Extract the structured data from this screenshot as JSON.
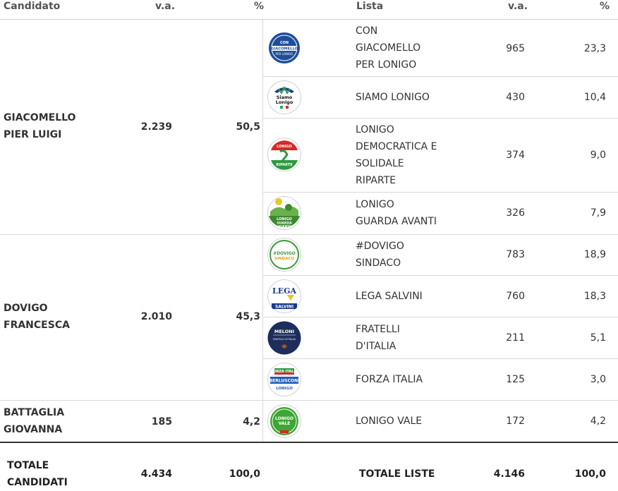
{
  "header": {
    "candidate": "Candidato",
    "va": "v.a.",
    "pct": "%",
    "list": "Lista",
    "list_va": "v.a.",
    "list_pct": "%"
  },
  "candidates": [
    {
      "name_line1": "GIACOMELLO",
      "name_line2": "PIER LUIGI",
      "va": "2.239",
      "pct": "50,5"
    },
    {
      "name_line1": "DOVIGO",
      "name_line2": "FRANCESCA",
      "va": "2.010",
      "pct": "45,3"
    },
    {
      "name_line1": "BATTAGLIA",
      "name_line2": "GIOVANNA",
      "va": "185",
      "pct": "4,2"
    }
  ],
  "lists": [
    {
      "lines": [
        "CON",
        "GIACOMELLO",
        "PER LONIGO"
      ],
      "va": "965",
      "pct": "23,3",
      "logo_text": [
        "CON",
        "GIACOMELLO",
        "PER LONIGO"
      ],
      "icon": "con-giacomello-logo-icon"
    },
    {
      "lines": [
        "SIAMO LONIGO"
      ],
      "va": "430",
      "pct": "10,4",
      "logo_text": [
        "Siamo",
        "Lonigo"
      ],
      "icon": "siamo-lonigo-logo-icon"
    },
    {
      "lines": [
        "LONIGO",
        "DEMOCRATICA E",
        "SOLIDALE",
        "RIPARTE"
      ],
      "va": "374",
      "pct": "9,0",
      "logo_text": [
        "LONIGO",
        "RIPARTE"
      ],
      "icon": "lonigo-democratica-logo-icon"
    },
    {
      "lines": [
        "LONIGO",
        "GUARDA AVANTI"
      ],
      "va": "326",
      "pct": "7,9",
      "logo_text": [
        "LONIGO",
        "GUARDA",
        "AVANTI"
      ],
      "icon": "lonigo-guarda-avanti-logo-icon"
    },
    {
      "lines": [
        "#DOVIGO",
        "SINDACO"
      ],
      "va": "783",
      "pct": "18,9",
      "logo_text": [
        "#DOVIGO",
        "SINDACO"
      ],
      "icon": "dovigo-sindaco-logo-icon"
    },
    {
      "lines": [
        "LEGA SALVINI"
      ],
      "va": "760",
      "pct": "18,3",
      "logo_text": [
        "LEGA",
        "SALVINI"
      ],
      "icon": "lega-salvini-logo-icon"
    },
    {
      "lines": [
        "FRATELLI",
        "D'ITALIA"
      ],
      "va": "211",
      "pct": "5,1",
      "logo_text": [
        "MELONI",
        "FRATELLI D'ITALIA"
      ],
      "icon": "fratelli-italia-logo-icon"
    },
    {
      "lines": [
        "FORZA ITALIA"
      ],
      "va": "125",
      "pct": "3,0",
      "logo_text": [
        "FORZA ITALIA",
        "BERLUSCONI",
        "LONIGO"
      ],
      "icon": "forza-italia-logo-icon"
    },
    {
      "lines": [
        "LONIGO VALE"
      ],
      "va": "172",
      "pct": "4,2",
      "logo_text": [
        "LONIGO",
        "VALE"
      ],
      "icon": "lonigo-vale-logo-icon"
    }
  ],
  "totals": {
    "candidates_label_line1": "TOTALE",
    "candidates_label_line2": "CANDIDATI",
    "candidates_va": "4.434",
    "candidates_pct": "100,0",
    "lists_label": "TOTALE LISTE",
    "lists_va": "4.146",
    "lists_pct": "100,0"
  },
  "colors": {
    "header_text": "#555555",
    "border": "#d8d8d8",
    "total_line": "#333333"
  }
}
